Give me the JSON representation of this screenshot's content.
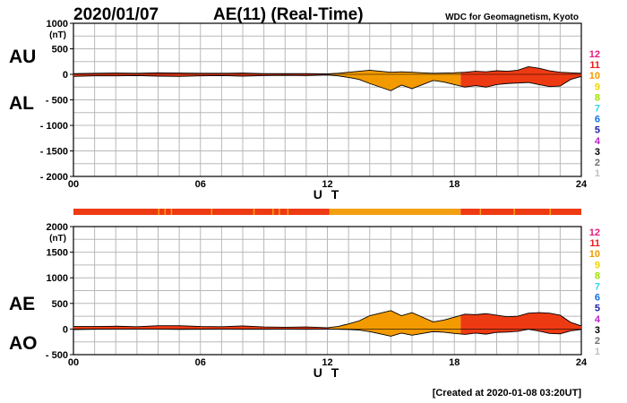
{
  "header": {
    "date": "2020/01/07",
    "title": "AE(11) (Real-Time)",
    "source": "WDC for Geomagnetism, Kyoto"
  },
  "footer": {
    "created": "[Created at 2020-01-08 03:20UT]"
  },
  "legend": {
    "items": [
      {
        "label": "12",
        "color": "#e6197f"
      },
      {
        "label": "11",
        "color": "#ee1c1c"
      },
      {
        "label": "10",
        "color": "#f29a00"
      },
      {
        "label": "9",
        "color": "#f2d400"
      },
      {
        "label": "8",
        "color": "#a0e000"
      },
      {
        "label": "7",
        "color": "#30d8f0"
      },
      {
        "label": "6",
        "color": "#1070e0"
      },
      {
        "label": "5",
        "color": "#2020b0"
      },
      {
        "label": "4",
        "color": "#c020d0"
      },
      {
        "label": "3",
        "color": "#000000"
      },
      {
        "label": "2",
        "color": "#707070"
      },
      {
        "label": "1",
        "color": "#c0c0c0"
      }
    ]
  },
  "station_bar": {
    "segments": [
      {
        "from": 0,
        "to": 12.1,
        "color": "#ee3a12"
      },
      {
        "from": 12.1,
        "to": 18.3,
        "color": "#f2a012"
      },
      {
        "from": 18.3,
        "to": 24,
        "color": "#ee3a12"
      }
    ],
    "accents": [
      {
        "at": 4.0,
        "color": "#f2a012"
      },
      {
        "at": 4.3,
        "color": "#f2a012"
      },
      {
        "at": 4.6,
        "color": "#f2a012"
      },
      {
        "at": 6.5,
        "color": "#f2a012"
      },
      {
        "at": 8.5,
        "color": "#f2a012"
      },
      {
        "at": 9.4,
        "color": "#f2a012"
      },
      {
        "at": 9.7,
        "color": "#f2a012"
      },
      {
        "at": 10.1,
        "color": "#f2a012"
      },
      {
        "at": 19.2,
        "color": "#f2a012"
      },
      {
        "at": 20.8,
        "color": "#f2a012"
      },
      {
        "at": 22.5,
        "color": "#f2a012"
      }
    ]
  },
  "chart_data": [
    {
      "type": "area",
      "labels": [
        "AU",
        "AL"
      ],
      "xlabel": "U T",
      "unit": "(nT)",
      "xlim": [
        0,
        24
      ],
      "ylim": [
        -2000,
        1000
      ],
      "xticks": [
        0,
        6,
        12,
        18,
        24
      ],
      "xtick_labels": [
        "00",
        "06",
        "12",
        "18",
        "24"
      ],
      "yticks": [
        1000,
        500,
        0,
        -500,
        -1000,
        -1500,
        -2000
      ],
      "ytick_labels": [
        "1000",
        "500",
        "0",
        "- 500",
        "- 1000",
        "- 1500",
        "- 2000"
      ],
      "grid": true,
      "series": [
        {
          "name": "AU",
          "x": [
            0,
            1,
            2,
            3,
            4,
            5,
            6,
            7,
            8,
            9,
            10,
            11,
            12,
            12.5,
            13,
            13.5,
            14,
            14.5,
            15,
            15.5,
            16,
            16.5,
            17,
            17.5,
            18,
            18.5,
            19,
            19.5,
            20,
            20.5,
            21,
            21.5,
            22,
            22.5,
            23,
            23.5,
            24
          ],
          "y": [
            15,
            20,
            25,
            20,
            30,
            25,
            20,
            20,
            25,
            15,
            15,
            15,
            10,
            20,
            40,
            60,
            80,
            60,
            40,
            50,
            40,
            30,
            20,
            25,
            30,
            40,
            60,
            50,
            70,
            60,
            80,
            150,
            120,
            70,
            40,
            30,
            20
          ]
        },
        {
          "name": "AL",
          "x": [
            0,
            1,
            2,
            3,
            4,
            5,
            6,
            7,
            8,
            9,
            10,
            11,
            12,
            12.5,
            13,
            13.5,
            14,
            14.5,
            15,
            15.5,
            16,
            16.5,
            17,
            17.5,
            18,
            18.5,
            19,
            19.5,
            20,
            20.5,
            21,
            21.5,
            22,
            22.5,
            23,
            23.5,
            24
          ],
          "y": [
            -40,
            -30,
            -30,
            -25,
            -35,
            -40,
            -30,
            -25,
            -35,
            -25,
            -20,
            -25,
            -15,
            -30,
            -60,
            -100,
            -180,
            -250,
            -320,
            -210,
            -280,
            -200,
            -120,
            -150,
            -200,
            -250,
            -220,
            -250,
            -200,
            -180,
            -170,
            -160,
            -200,
            -240,
            -230,
            -100,
            -40
          ]
        }
      ]
    },
    {
      "type": "area",
      "labels": [
        "AE",
        "AO"
      ],
      "xlabel": "U T",
      "unit": "(nT)",
      "xlim": [
        0,
        24
      ],
      "ylim": [
        -500,
        2000
      ],
      "xticks": [
        0,
        6,
        12,
        18,
        24
      ],
      "xtick_labels": [
        "00",
        "06",
        "12",
        "18",
        "24"
      ],
      "yticks": [
        2000,
        1500,
        1000,
        500,
        0,
        -500
      ],
      "ytick_labels": [
        "2000",
        "1500",
        "1000",
        "500",
        "0",
        "- 500"
      ],
      "grid": true,
      "series": [
        {
          "name": "AE",
          "x": [
            0,
            1,
            2,
            3,
            4,
            5,
            6,
            7,
            8,
            9,
            10,
            11,
            12,
            12.5,
            13,
            13.5,
            14,
            14.5,
            15,
            15.5,
            16,
            16.5,
            17,
            17.5,
            18,
            18.5,
            19,
            19.5,
            20,
            20.5,
            21,
            21.5,
            22,
            22.5,
            23,
            23.5,
            24
          ],
          "y": [
            50,
            50,
            55,
            45,
            65,
            65,
            50,
            45,
            60,
            40,
            35,
            40,
            25,
            50,
            100,
            160,
            260,
            310,
            360,
            260,
            320,
            230,
            140,
            175,
            230,
            290,
            280,
            300,
            270,
            240,
            250,
            310,
            320,
            310,
            270,
            130,
            60
          ]
        },
        {
          "name": "AO",
          "x": [
            0,
            1,
            2,
            3,
            4,
            5,
            6,
            7,
            8,
            9,
            10,
            11,
            12,
            12.5,
            13,
            13.5,
            14,
            14.5,
            15,
            15.5,
            16,
            16.5,
            17,
            17.5,
            18,
            18.5,
            19,
            19.5,
            20,
            20.5,
            21,
            21.5,
            22,
            22.5,
            23,
            23.5,
            24
          ],
          "y": [
            -12,
            -5,
            -3,
            -3,
            -3,
            -8,
            -5,
            -3,
            -5,
            -5,
            -3,
            -5,
            -3,
            -5,
            -10,
            -20,
            -50,
            -95,
            -140,
            -80,
            -120,
            -85,
            -50,
            -62,
            -85,
            -105,
            -80,
            -100,
            -65,
            -60,
            -45,
            -5,
            -40,
            -85,
            -95,
            -35,
            -10
          ]
        }
      ]
    }
  ]
}
